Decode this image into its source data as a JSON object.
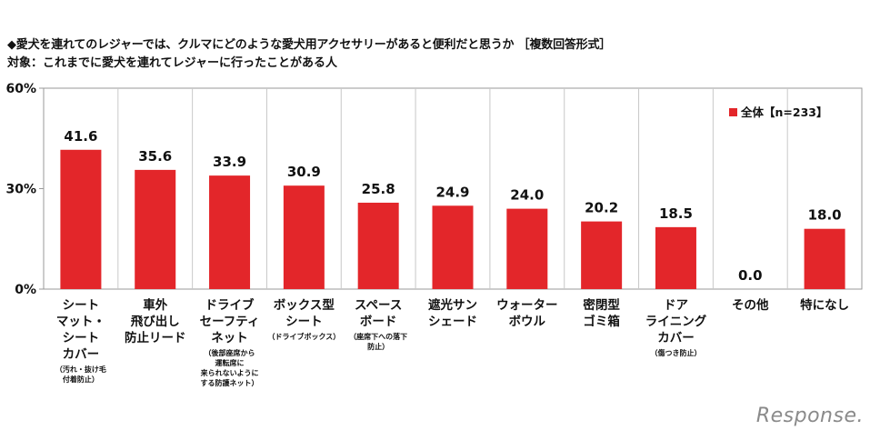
{
  "title": "◆愛犬を連れてのレジャーでは、クルマにどのような愛犬用アクセサリーがあると便利だと思うか ［複数回答形式］",
  "subtitle": "対象：これまでに愛犬を連れてレジャーに行ったことがある人",
  "watermark": "Response.",
  "colors": {
    "bar": "#e3262a",
    "grid": "#999999"
  },
  "chart_data": {
    "type": "bar",
    "title": "",
    "xlabel": "",
    "ylabel": "",
    "ylim": [
      0,
      60
    ],
    "yticks": [
      "0%",
      "30%",
      "60%"
    ],
    "ytick_values": [
      0,
      30,
      60
    ],
    "grid": false,
    "legend_position": "top-right",
    "series": [
      {
        "name": "全体【n=233】",
        "values": [
          41.6,
          35.6,
          33.9,
          30.9,
          25.8,
          24.9,
          24.0,
          20.2,
          18.5,
          0.0,
          18.0
        ]
      }
    ],
    "value_labels": [
      "41.6",
      "35.6",
      "33.9",
      "30.9",
      "25.8",
      "24.9",
      "24.0",
      "20.2",
      "18.5",
      "0.0",
      "18.0"
    ],
    "categories": [
      {
        "lines": [
          "シート",
          "マット・",
          "シート",
          "カバー"
        ],
        "note": [
          "（汚れ・抜け毛",
          "付着防止）"
        ]
      },
      {
        "lines": [
          "車外",
          "飛び出し",
          "防止リード"
        ],
        "note": []
      },
      {
        "lines": [
          "ドライブ",
          "セーフティ",
          "ネット"
        ],
        "note": [
          "（後部座席から",
          "運転席に",
          "来られないように",
          "する防護ネット）"
        ]
      },
      {
        "lines": [
          "ボックス型",
          "シート"
        ],
        "note": [
          "（ドライブボックス）"
        ]
      },
      {
        "lines": [
          "スペース",
          "ボード"
        ],
        "note": [
          "（座席下への落下",
          "防止）"
        ]
      },
      {
        "lines": [
          "遮光サン",
          "シェード"
        ],
        "note": []
      },
      {
        "lines": [
          "ウォーター",
          "ボウル"
        ],
        "note": []
      },
      {
        "lines": [
          "密閉型",
          "ゴミ箱"
        ],
        "note": []
      },
      {
        "lines": [
          "ドア",
          "ライニング",
          "カバー"
        ],
        "note": [
          "（傷つき防止）"
        ]
      },
      {
        "lines": [
          "その他"
        ],
        "note": []
      },
      {
        "lines": [
          "特になし"
        ],
        "note": []
      }
    ]
  }
}
